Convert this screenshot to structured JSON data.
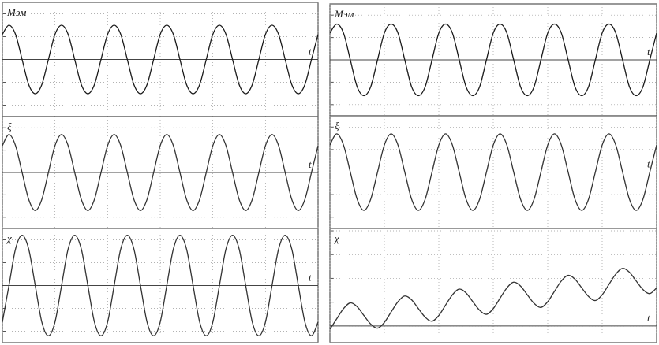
{
  "chart_data": [
    {
      "type": "line",
      "y_label": "Mэм",
      "x_label": "t",
      "xlim": [
        0,
        6
      ],
      "xticks": [
        0,
        1,
        2,
        3,
        4,
        5,
        6
      ],
      "ylim": [
        -2.5,
        2.5
      ],
      "yticks": [
        -2,
        -1,
        0,
        1,
        2
      ],
      "grid": true,
      "color": "#1a1a1a",
      "x": [
        0,
        0.125,
        0.25,
        0.375,
        0.5,
        0.625,
        0.75,
        0.875,
        1,
        1.125,
        1.25,
        1.375,
        1.5,
        1.625,
        1.75,
        1.875,
        2,
        2.125,
        2.25,
        2.375,
        2.5,
        2.625,
        2.75,
        2.875,
        3,
        3.125,
        3.25,
        3.375,
        3.5,
        3.625,
        3.75,
        3.875,
        4,
        4.125,
        4.25,
        4.375,
        4.5,
        4.625,
        4.75,
        4.875,
        5,
        5.125,
        5.25,
        5.375,
        5.5,
        5.625,
        5.75,
        5.875,
        6
      ],
      "values": [
        1.1,
        1.5,
        1.1,
        0,
        -1.1,
        -1.5,
        -1.1,
        0,
        1.1,
        1.5,
        1.1,
        0,
        -1.1,
        -1.5,
        -1.1,
        0,
        1.1,
        1.5,
        1.1,
        0,
        -1.1,
        -1.5,
        -1.1,
        0,
        1.1,
        1.5,
        1.1,
        0,
        -1.1,
        -1.5,
        -1.1,
        0,
        1.1,
        1.5,
        1.1,
        0,
        -1.1,
        -1.5,
        -1.1,
        0,
        1.1,
        1.5,
        1.1,
        0,
        -1.1,
        -1.5,
        -1.1,
        0,
        1.1
      ]
    },
    {
      "type": "line",
      "y_label": "ξ",
      "x_label": "t",
      "xlim": [
        0,
        6
      ],
      "xticks": [
        0,
        1,
        2,
        3,
        4,
        5,
        6
      ],
      "ylim": [
        -2.5,
        2.5
      ],
      "yticks": [
        -2,
        -1,
        0,
        1,
        2
      ],
      "grid": true,
      "color": "#333333",
      "x": [
        0,
        0.125,
        0.25,
        0.375,
        0.5,
        0.625,
        0.75,
        0.875,
        1,
        1.125,
        1.25,
        1.375,
        1.5,
        1.625,
        1.75,
        1.875,
        2,
        2.125,
        2.25,
        2.375,
        2.5,
        2.625,
        2.75,
        2.875,
        3,
        3.125,
        3.25,
        3.375,
        3.5,
        3.625,
        3.75,
        3.875,
        4,
        4.125,
        4.25,
        4.375,
        4.5,
        4.625,
        4.75,
        4.875,
        5,
        5.125,
        5.25,
        5.375,
        5.5,
        5.625,
        5.75,
        5.875,
        6
      ],
      "values": [
        1.2,
        1.7,
        1.2,
        0,
        -1.2,
        -1.7,
        -1.2,
        0,
        1.2,
        1.7,
        1.2,
        0,
        -1.2,
        -1.7,
        -1.2,
        0,
        1.2,
        1.7,
        1.2,
        0,
        -1.2,
        -1.7,
        -1.2,
        0,
        1.2,
        1.7,
        1.2,
        0,
        -1.2,
        -1.7,
        -1.2,
        0,
        1.2,
        1.7,
        1.2,
        0,
        -1.2,
        -1.7,
        -1.2,
        0,
        1.2,
        1.7,
        1.2,
        0,
        -1.2,
        -1.7,
        -1.2,
        0,
        1.2
      ]
    },
    {
      "type": "line",
      "y_label": "χ",
      "x_label": "t",
      "xlim": [
        0,
        6
      ],
      "xticks": [
        0,
        1,
        2,
        3,
        4,
        5,
        6
      ],
      "ylim": [
        -2.5,
        2.5
      ],
      "yticks": [
        -2,
        -1,
        0,
        1,
        2
      ],
      "grid": true,
      "color": "#333333",
      "x": [
        0,
        0.125,
        0.25,
        0.375,
        0.5,
        0.625,
        0.75,
        0.875,
        1,
        1.125,
        1.25,
        1.375,
        1.5,
        1.625,
        1.75,
        1.875,
        2,
        2.125,
        2.25,
        2.375,
        2.5,
        2.625,
        2.75,
        2.875,
        3,
        3.125,
        3.25,
        3.375,
        3.5,
        3.625,
        3.75,
        3.875,
        4,
        4.125,
        4.25,
        4.375,
        4.5,
        4.625,
        4.75,
        4.875,
        5,
        5.125,
        5.25,
        5.375,
        5.5,
        5.625,
        5.75,
        5.875,
        6
      ],
      "values": [
        -1.6,
        0,
        1.6,
        2.2,
        1.6,
        0,
        -1.6,
        -2.2,
        -1.6,
        0,
        1.6,
        2.2,
        1.6,
        0,
        -1.6,
        -2.2,
        -1.6,
        0,
        1.6,
        2.2,
        1.6,
        0,
        -1.6,
        -2.2,
        -1.6,
        0,
        1.6,
        2.2,
        1.6,
        0,
        -1.6,
        -2.2,
        -1.6,
        0,
        1.6,
        2.2,
        1.6,
        0,
        -1.6,
        -2.2,
        -1.6,
        0,
        1.6,
        2.2,
        1.6,
        0,
        -1.6,
        -2.2,
        -1.6
      ]
    },
    {
      "type": "line",
      "y_label": "Mэм",
      "x_label": "t",
      "xlim": [
        0,
        6
      ],
      "xticks": [
        0,
        1,
        2,
        3,
        4,
        5,
        6
      ],
      "ylim": [
        -2.5,
        2.5
      ],
      "yticks": [
        -2,
        -1,
        0,
        1,
        2
      ],
      "grid": true,
      "color": "#1a1a1a",
      "x": [
        0,
        0.125,
        0.25,
        0.375,
        0.5,
        0.625,
        0.75,
        0.875,
        1,
        1.125,
        1.25,
        1.375,
        1.5,
        1.625,
        1.75,
        1.875,
        2,
        2.125,
        2.25,
        2.375,
        2.5,
        2.625,
        2.75,
        2.875,
        3,
        3.125,
        3.25,
        3.375,
        3.5,
        3.625,
        3.75,
        3.875,
        4,
        4.125,
        4.25,
        4.375,
        4.5,
        4.625,
        4.75,
        4.875,
        5,
        5.125,
        5.25,
        5.375,
        5.5,
        5.625,
        5.75,
        5.875,
        6
      ],
      "values": [
        1.2,
        1.6,
        1.2,
        0,
        -1.2,
        -1.6,
        -1.2,
        0,
        1.2,
        1.6,
        1.2,
        0,
        -1.2,
        -1.6,
        -1.2,
        0,
        1.2,
        1.6,
        1.2,
        0,
        -1.2,
        -1.6,
        -1.2,
        0,
        1.2,
        1.6,
        1.2,
        0,
        -1.2,
        -1.6,
        -1.2,
        0,
        1.2,
        1.6,
        1.2,
        0,
        -1.2,
        -1.6,
        -1.2,
        0,
        1.2,
        1.6,
        1.2,
        0,
        -1.2,
        -1.6,
        -1.2,
        0,
        1.2
      ]
    },
    {
      "type": "line",
      "y_label": "ξ",
      "x_label": "t",
      "xlim": [
        0,
        6
      ],
      "xticks": [
        0,
        1,
        2,
        3,
        4,
        5,
        6
      ],
      "ylim": [
        -2.5,
        2.5
      ],
      "yticks": [
        -2,
        -1,
        0,
        1,
        2
      ],
      "grid": true,
      "color": "#333333",
      "x": [
        0,
        0.125,
        0.25,
        0.375,
        0.5,
        0.625,
        0.75,
        0.875,
        1,
        1.125,
        1.25,
        1.375,
        1.5,
        1.625,
        1.75,
        1.875,
        2,
        2.125,
        2.25,
        2.375,
        2.5,
        2.625,
        2.75,
        2.875,
        3,
        3.125,
        3.25,
        3.375,
        3.5,
        3.625,
        3.75,
        3.875,
        4,
        4.125,
        4.25,
        4.375,
        4.5,
        4.625,
        4.75,
        4.875,
        5,
        5.125,
        5.25,
        5.375,
        5.5,
        5.625,
        5.75,
        5.875,
        6
      ],
      "values": [
        1.2,
        1.7,
        1.2,
        0,
        -1.2,
        -1.7,
        -1.2,
        0,
        1.2,
        1.7,
        1.2,
        0,
        -1.2,
        -1.7,
        -1.2,
        0,
        1.2,
        1.7,
        1.2,
        0,
        -1.2,
        -1.7,
        -1.2,
        0,
        1.2,
        1.7,
        1.2,
        0,
        -1.2,
        -1.7,
        -1.2,
        0,
        1.2,
        1.7,
        1.2,
        0,
        -1.2,
        -1.7,
        -1.2,
        0,
        1.2,
        1.7,
        1.2,
        0,
        -1.2,
        -1.7,
        -1.2,
        0,
        1.2
      ]
    },
    {
      "type": "line",
      "y_label": "χ",
      "x_label": "t",
      "xlim": [
        0,
        6
      ],
      "xticks": [
        0,
        1,
        2,
        3,
        4,
        5,
        6
      ],
      "ylim": [
        -0.7,
        4.1
      ],
      "yticks": [
        0,
        1,
        2,
        3,
        4
      ],
      "grid": true,
      "color": "#333333",
      "x": [
        0,
        0.125,
        0.25,
        0.375,
        0.5,
        0.625,
        0.75,
        0.875,
        1,
        1.125,
        1.25,
        1.375,
        1.5,
        1.625,
        1.75,
        1.875,
        2,
        2.125,
        2.25,
        2.375,
        2.5,
        2.625,
        2.75,
        2.875,
        3,
        3.125,
        3.25,
        3.375,
        3.5,
        3.625,
        3.75,
        3.875,
        4,
        4.125,
        4.25,
        4.375,
        4.5,
        4.625,
        4.75,
        4.875,
        5,
        5.125,
        5.25,
        5.375,
        5.5,
        5.625,
        5.75,
        5.875,
        6
      ],
      "values": [
        -0.14,
        0.3,
        0.73,
        0.97,
        0.81,
        0.44,
        0.08,
        -0.09,
        0.15,
        0.59,
        1.02,
        1.26,
        1.1,
        0.73,
        0.37,
        0.2,
        0.44,
        0.88,
        1.31,
        1.55,
        1.39,
        1.02,
        0.66,
        0.49,
        0.73,
        1.17,
        1.6,
        1.84,
        1.68,
        1.31,
        0.95,
        0.78,
        1.02,
        1.46,
        1.89,
        2.13,
        1.97,
        1.6,
        1.24,
        1.07,
        1.31,
        1.75,
        2.18,
        2.42,
        2.26,
        1.89,
        1.53,
        1.36,
        1.6
      ]
    }
  ]
}
